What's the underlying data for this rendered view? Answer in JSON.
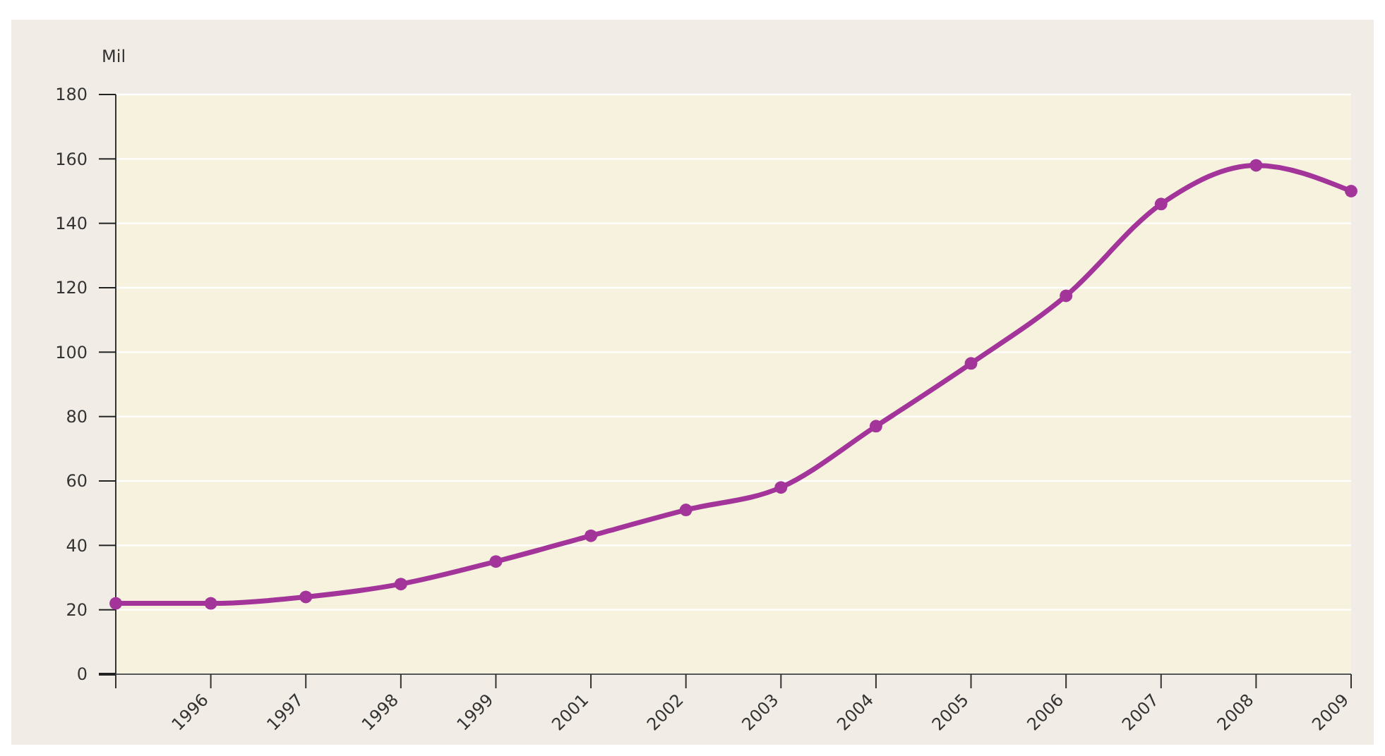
{
  "chart_data": {
    "type": "line",
    "ylabel": "Mil",
    "categories": [
      null,
      "1996",
      "1997",
      "1998",
      "1999",
      "2001",
      "2002",
      "2003",
      "2004",
      "2005",
      "2006",
      "2007",
      "2008",
      "2009"
    ],
    "series": [
      {
        "color": "#a3349a",
        "values": [
          22,
          22,
          24,
          28,
          35,
          43,
          51,
          58,
          77,
          96.5,
          117.5,
          146,
          158,
          150
        ]
      }
    ],
    "ylim": [
      0,
      180
    ],
    "yticks": [
      0,
      20,
      40,
      60,
      80,
      100,
      120,
      140,
      160,
      180
    ],
    "grid": "y",
    "marker": "circle",
    "line_style": "solid"
  }
}
